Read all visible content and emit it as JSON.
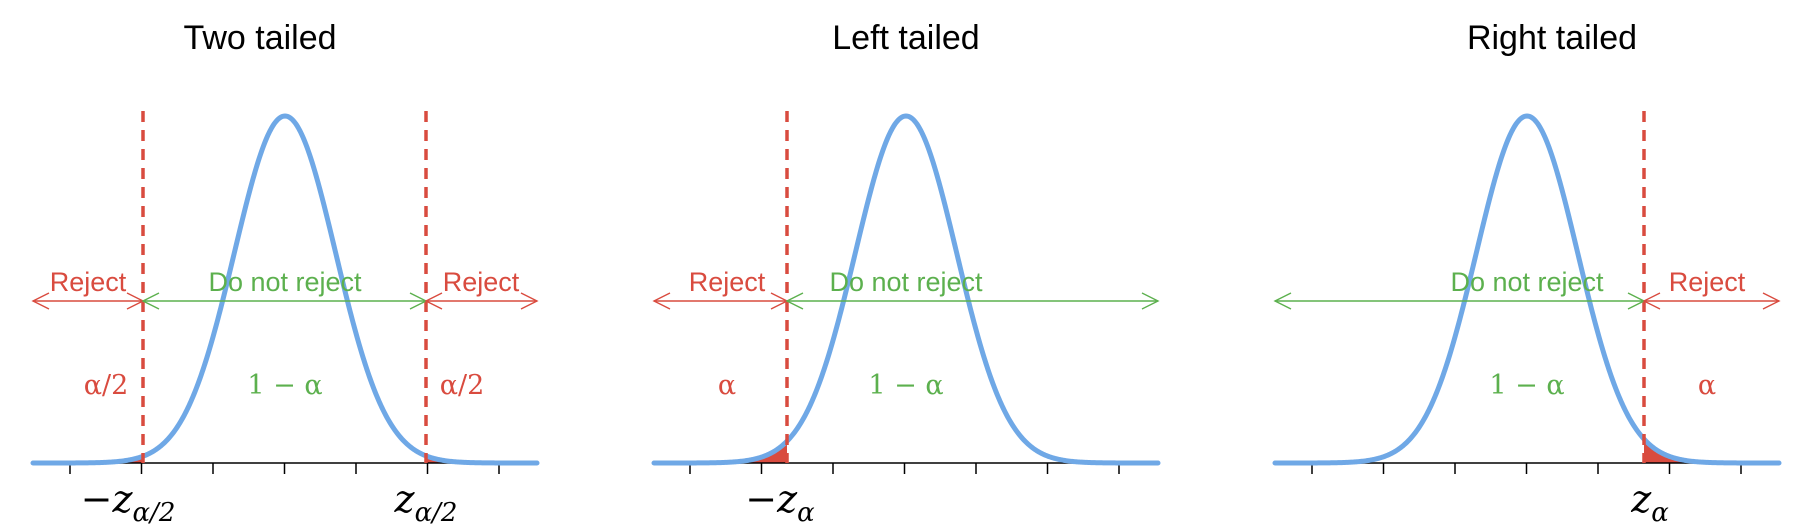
{
  "colors": {
    "curve": "#6FA8E6",
    "reject": "#D94B3F",
    "do_not_reject": "#5CB04E",
    "axis": "#000000"
  },
  "panels": [
    {
      "id": "two",
      "title": "Two tailed",
      "regions": [
        {
          "text": "Reject",
          "color": "reject"
        },
        {
          "text": "Do not reject",
          "color": "do_not_reject"
        },
        {
          "text": "Reject",
          "color": "reject"
        }
      ],
      "probs": [
        {
          "text": "α/2",
          "color": "reject"
        },
        {
          "text": "1 − α",
          "color": "do_not_reject"
        },
        {
          "text": "α/2",
          "color": "reject"
        }
      ],
      "critical_labels": [
        {
          "minus": "−",
          "main": "z",
          "sub": "α/2"
        },
        {
          "minus": "",
          "main": "z",
          "sub": "α/2"
        }
      ]
    },
    {
      "id": "left",
      "title": "Left tailed",
      "regions": [
        {
          "text": "Reject",
          "color": "reject"
        },
        {
          "text": "Do not reject",
          "color": "do_not_reject"
        }
      ],
      "probs": [
        {
          "text": "α",
          "color": "reject"
        },
        {
          "text": "1 − α",
          "color": "do_not_reject"
        }
      ],
      "critical_labels": [
        {
          "minus": "−",
          "main": "z",
          "sub": "α"
        }
      ]
    },
    {
      "id": "right",
      "title": "Right tailed",
      "regions": [
        {
          "text": "Do not reject",
          "color": "do_not_reject"
        },
        {
          "text": "Reject",
          "color": "reject"
        }
      ],
      "probs": [
        {
          "text": "1 − α",
          "color": "do_not_reject"
        },
        {
          "text": "α",
          "color": "reject"
        }
      ],
      "critical_labels": [
        {
          "minus": "",
          "main": "z",
          "sub": "α"
        }
      ]
    }
  ]
}
